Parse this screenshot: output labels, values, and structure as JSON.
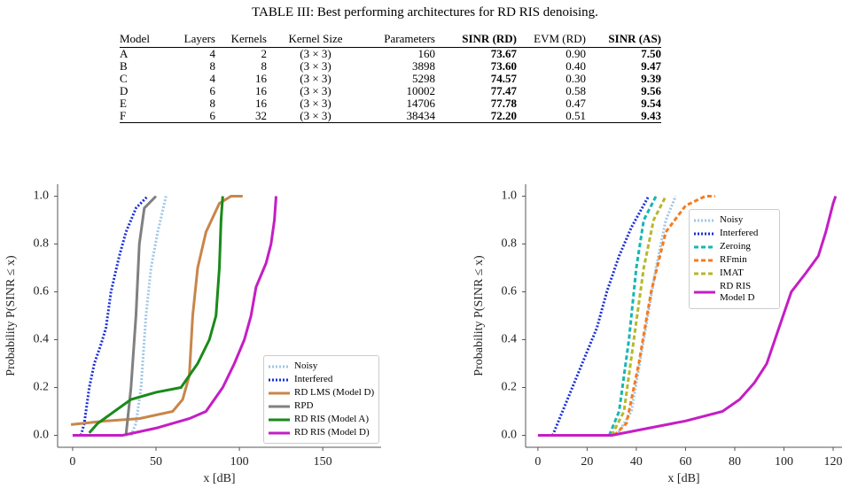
{
  "table": {
    "caption": "TABLE III: Best performing architectures for RD RIS denoising.",
    "header": [
      "Model",
      "Layers",
      "Kernels",
      "Kernel Size",
      "Parameters",
      "SINR (RD)",
      "EVM (RD)",
      "SINR (AS)"
    ],
    "rows": [
      [
        "A",
        "4",
        "2",
        "(3 × 3)",
        "160",
        "73.67",
        "0.90",
        "7.50"
      ],
      [
        "B",
        "8",
        "8",
        "(3 × 3)",
        "3898",
        "73.60",
        "0.40",
        "9.47"
      ],
      [
        "C",
        "4",
        "16",
        "(3 × 3)",
        "5298",
        "74.57",
        "0.30",
        "9.39"
      ],
      [
        "D",
        "6",
        "16",
        "(3 × 3)",
        "10002",
        "77.47",
        "0.58",
        "9.56"
      ],
      [
        "E",
        "8",
        "16",
        "(3 × 3)",
        "14706",
        "77.78",
        "0.47",
        "9.54"
      ],
      [
        "F",
        "6",
        "32",
        "(3 × 3)",
        "38434",
        "72.20",
        "0.51",
        "9.43"
      ]
    ]
  },
  "chart_data": [
    {
      "type": "line",
      "x_label": "x [dB]",
      "y_label": "Probability P(SINR ≤ x)",
      "xlim": [
        -9,
        185
      ],
      "ylim": [
        -0.05,
        1.05
      ],
      "xticks": [
        0,
        50,
        100,
        150
      ],
      "yticks": [
        {
          "value": 0,
          "label": "0.0"
        },
        0.2,
        0.4,
        0.6,
        0.8,
        {
          "value": 1,
          "label": "1.0"
        }
      ],
      "grid": false,
      "legend_loc": "lower right",
      "series": [
        {
          "name": "Noisy",
          "color": "#9fc6e8",
          "style": "dotted",
          "x": [
            35,
            38,
            41,
            44,
            47,
            51,
            56
          ],
          "values": [
            0,
            0.05,
            0.2,
            0.5,
            0.7,
            0.85,
            1.0
          ]
        },
        {
          "name": "Interfered",
          "color": "#1a2ed8",
          "style": "dotted",
          "x": [
            5,
            7,
            10,
            13,
            17,
            20,
            23,
            28,
            32,
            38,
            45
          ],
          "values": [
            0,
            0.05,
            0.2,
            0.3,
            0.38,
            0.45,
            0.6,
            0.75,
            0.85,
            0.95,
            1.0
          ]
        },
        {
          "name": "RD LMS (Model D)",
          "color": "#c8864a",
          "style": "solid",
          "x": [
            -1,
            20,
            40,
            60,
            66,
            70,
            72,
            75,
            80,
            88,
            95,
            102
          ],
          "values": [
            0.045,
            0.06,
            0.07,
            0.1,
            0.15,
            0.25,
            0.5,
            0.7,
            0.85,
            0.97,
            1.0,
            1.0
          ]
        },
        {
          "name": "RPD",
          "color": "#808080",
          "style": "solid",
          "x": [
            32,
            35,
            38,
            40,
            43,
            50
          ],
          "values": [
            0,
            0.2,
            0.5,
            0.8,
            0.95,
            1.0
          ]
        },
        {
          "name": "RD RIS (Model A)",
          "color": "#1a8a1a",
          "style": "solid",
          "x": [
            10,
            15,
            25,
            35,
            50,
            65,
            75,
            82,
            86,
            88,
            89,
            90
          ],
          "values": [
            0.01,
            0.05,
            0.1,
            0.15,
            0.18,
            0.2,
            0.3,
            0.4,
            0.5,
            0.7,
            0.9,
            1.0
          ]
        },
        {
          "name": "RD RIS (Model D)",
          "color": "#c41ec4",
          "style": "solid",
          "x": [
            0,
            30,
            50,
            70,
            80,
            90,
            97,
            103,
            107,
            110,
            116,
            119,
            121,
            122
          ],
          "values": [
            0,
            0,
            0.03,
            0.07,
            0.1,
            0.2,
            0.3,
            0.4,
            0.5,
            0.62,
            0.72,
            0.8,
            0.9,
            1.0
          ]
        }
      ]
    },
    {
      "type": "line",
      "x_label": "x [dB]",
      "y_label": "Probability P(SINR ≤ x)",
      "xlim": [
        -5,
        123.6
      ],
      "ylim": [
        -0.05,
        1.05
      ],
      "xticks": [
        0,
        20,
        40,
        60,
        80,
        100,
        120
      ],
      "yticks": [
        {
          "value": 0,
          "label": "0.0"
        },
        0.2,
        0.4,
        0.6,
        0.8,
        {
          "value": 1,
          "label": "1.0"
        }
      ],
      "grid": false,
      "legend_loc": "upper right",
      "series": [
        {
          "name": "Noisy",
          "color": "#9fc6e8",
          "style": "dotted",
          "x": [
            32,
            38,
            43,
            48,
            52,
            56
          ],
          "values": [
            0,
            0.1,
            0.4,
            0.7,
            0.9,
            1.0
          ]
        },
        {
          "name": "Interfered",
          "color": "#1a2ed8",
          "style": "dotted",
          "x": [
            6,
            8,
            12,
            18,
            24,
            28,
            33,
            38,
            45
          ],
          "values": [
            0,
            0.05,
            0.15,
            0.3,
            0.45,
            0.6,
            0.75,
            0.87,
            1.0
          ]
        },
        {
          "name": "Zeroing",
          "color": "#19b5b5",
          "style": "dashed",
          "x": [
            29,
            33,
            37,
            40,
            43,
            48
          ],
          "values": [
            0,
            0.1,
            0.4,
            0.7,
            0.9,
            1.0
          ]
        },
        {
          "name": "RFmin",
          "color": "#f57c1f",
          "style": "dashed",
          "x": [
            31,
            36,
            41,
            46,
            52,
            60,
            68,
            72
          ],
          "values": [
            0,
            0.05,
            0.3,
            0.6,
            0.85,
            0.96,
            1.0,
            1.0
          ]
        },
        {
          "name": "IMAT",
          "color": "#b7b72a",
          "style": "dashed",
          "x": [
            30,
            35,
            39,
            43,
            47,
            52
          ],
          "values": [
            0,
            0.1,
            0.4,
            0.7,
            0.9,
            1.0
          ]
        },
        {
          "name": "RD RIS Model D",
          "color": "#c41ec4",
          "style": "solid",
          "x": [
            0,
            30,
            45,
            60,
            75,
            82,
            88,
            93,
            98,
            103,
            109,
            114,
            117,
            120,
            121
          ],
          "values": [
            0,
            0,
            0.03,
            0.06,
            0.1,
            0.15,
            0.22,
            0.3,
            0.45,
            0.6,
            0.68,
            0.75,
            0.85,
            0.97,
            1.0
          ]
        }
      ]
    }
  ]
}
